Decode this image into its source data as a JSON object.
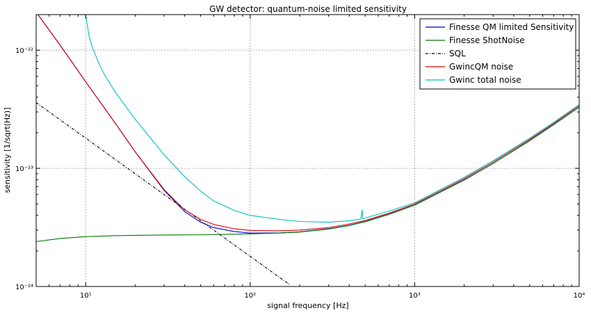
{
  "chart_data": {
    "type": "line",
    "title": "GW detector: quantum-noise limited sensitivity",
    "xlabel": "signal frequency [Hz]",
    "ylabel": "sensitivity [1/sqrt(Hz)]",
    "xscale": "log",
    "yscale": "log",
    "xlim": [
      5,
      10000
    ],
    "ylim": [
      1e-24,
      2e-22
    ],
    "grid": true,
    "legend_position": "top-right",
    "x_ticks": [
      {
        "value": 10,
        "label": "10¹"
      },
      {
        "value": 100,
        "label": "10²"
      },
      {
        "value": 1000,
        "label": "10³"
      },
      {
        "value": 10000,
        "label": "10⁴"
      }
    ],
    "y_ticks": [
      {
        "value": 1e-24,
        "label": "10⁻²⁴"
      },
      {
        "value": 1e-23,
        "label": "10⁻²³"
      },
      {
        "value": 1e-22,
        "label": "10⁻²²"
      }
    ],
    "series": [
      {
        "name": "Finesse QM limited Sensitivity",
        "color": "#0000cc",
        "style": "solid",
        "x": [
          5,
          7,
          10,
          15,
          20,
          30,
          40,
          50,
          60,
          80,
          100,
          150,
          200,
          300,
          400,
          500,
          700,
          1000,
          2000,
          3000,
          5000,
          7000,
          10000
        ],
        "y": [
          2.1e-22,
          1.1e-22,
          5.4e-23,
          2.45e-23,
          1.38e-23,
          6.5e-24,
          4.3e-24,
          3.5e-24,
          3.15e-24,
          2.92e-24,
          2.83e-24,
          2.84e-24,
          2.9e-24,
          3.08e-24,
          3.3e-24,
          3.55e-24,
          4.1e-24,
          4.9e-24,
          8e-24,
          1.1e-23,
          1.72e-23,
          2.35e-23,
          3.3e-23
        ]
      },
      {
        "name": "Finesse ShotNoise",
        "color": "#007700",
        "style": "solid",
        "x": [
          5,
          7,
          10,
          15,
          20,
          30,
          50,
          70,
          100,
          150,
          200,
          300,
          400,
          500,
          700,
          1000,
          2000,
          3000,
          5000,
          7000,
          10000
        ],
        "y": [
          2.4e-24,
          2.55e-24,
          2.64e-24,
          2.69e-24,
          2.71e-24,
          2.73e-24,
          2.74e-24,
          2.76e-24,
          2.79e-24,
          2.83e-24,
          2.89e-24,
          3.06e-24,
          3.28e-24,
          3.53e-24,
          4.08e-24,
          4.88e-24,
          7.95e-24,
          1.1e-23,
          1.71e-23,
          2.34e-23,
          3.29e-23
        ]
      },
      {
        "name": "SQL",
        "color": "#000000",
        "style": "dashdot",
        "x": [
          5,
          10,
          20,
          50,
          100,
          175
        ],
        "y": [
          3.6e-23,
          1.8e-23,
          9e-24,
          3.6e-24,
          1.8e-24,
          1.03e-24
        ]
      },
      {
        "name": "GwincQM noise",
        "color": "#dd0000",
        "style": "solid",
        "x": [
          5,
          7,
          10,
          15,
          20,
          30,
          40,
          50,
          60,
          80,
          100,
          150,
          200,
          300,
          400,
          500,
          700,
          1000,
          2000,
          3000,
          5000,
          7000,
          10000
        ],
        "y": [
          2.1e-22,
          1.1e-22,
          5.4e-23,
          2.45e-23,
          1.38e-23,
          6.6e-24,
          4.45e-24,
          3.7e-24,
          3.35e-24,
          3.08e-24,
          2.98e-24,
          2.96e-24,
          3e-24,
          3.15e-24,
          3.38e-24,
          3.62e-24,
          4.18e-24,
          5e-24,
          8.2e-24,
          1.13e-23,
          1.76e-23,
          2.4e-23,
          3.4e-23
        ]
      },
      {
        "name": "Gwinc total noise",
        "color": "#00bfbf",
        "style": "solid",
        "x": [
          10,
          10.5,
          11,
          12,
          13,
          15,
          20,
          30,
          40,
          50,
          60,
          80,
          100,
          150,
          200,
          300,
          400,
          470,
          480,
          482,
          484,
          490,
          500,
          700,
          1000,
          2000,
          3000,
          5000,
          7000,
          10000
        ],
        "y": [
          2e-22,
          1.3e-22,
          1.05e-22,
          7.8e-23,
          6.2e-23,
          4.5e-23,
          2.6e-23,
          1.3e-23,
          8.5e-24,
          6.4e-24,
          5.3e-24,
          4.4e-24,
          4e-24,
          3.7e-24,
          3.55e-24,
          3.5e-24,
          3.6e-24,
          3.72e-24,
          4.45e-24,
          3.75e-24,
          3.74e-24,
          3.76e-24,
          3.8e-24,
          4.35e-24,
          5.1e-24,
          8.4e-24,
          1.16e-23,
          1.8e-23,
          2.45e-23,
          3.45e-23
        ]
      }
    ]
  }
}
